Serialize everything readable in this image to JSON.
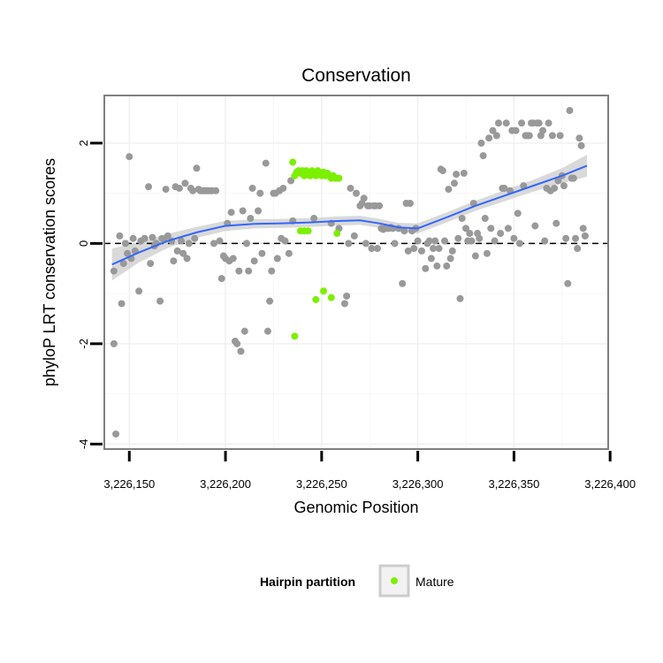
{
  "chart_data": {
    "type": "scatter",
    "title": "Conservation",
    "xlabel": "Genomic Position",
    "ylabel": "phyloP LRT conservation scores",
    "xlim": [
      3226137,
      3226399
    ],
    "ylim": [
      -4.1,
      2.95
    ],
    "x_ticks": [
      3226150,
      3226200,
      3226250,
      3226300,
      3226350,
      3226400
    ],
    "x_tick_labels": [
      "3,226,150",
      "3,226,200",
      "3,226,250",
      "3,226,300",
      "3,226,350",
      "3,226,400"
    ],
    "y_ticks": [
      -4,
      -2,
      0,
      2
    ],
    "y_tick_labels": [
      "-4",
      "-2",
      "0",
      "2"
    ],
    "reference_line": {
      "y": 0,
      "style": "dashed"
    },
    "legend": {
      "title": "Hairpin partition",
      "entries": [
        "Mature"
      ],
      "position": "bottom"
    },
    "colors": {
      "other": "#999999",
      "mature": "#7cf000",
      "smooth": "#3366ff",
      "band": "#cccccc"
    },
    "series": [
      {
        "name": "Other",
        "points": [
          [
            3226142,
            -0.55
          ],
          [
            3226142,
            -2.0
          ],
          [
            3226143,
            -3.8
          ],
          [
            3226145,
            0.15
          ],
          [
            3226146,
            -1.2
          ],
          [
            3226147,
            -0.4
          ],
          [
            3226148,
            0.0
          ],
          [
            3226149,
            -0.2
          ],
          [
            3226150,
            1.73
          ],
          [
            3226151,
            -0.3
          ],
          [
            3226152,
            0.1
          ],
          [
            3226153,
            -0.15
          ],
          [
            3226155,
            -0.95
          ],
          [
            3226156,
            0.05
          ],
          [
            3226158,
            0.1
          ],
          [
            3226160,
            1.13
          ],
          [
            3226161,
            -0.4
          ],
          [
            3226162,
            0.12
          ],
          [
            3226163,
            -0.05
          ],
          [
            3226164,
            0.0
          ],
          [
            3226166,
            -1.15
          ],
          [
            3226167,
            0.1
          ],
          [
            3226168,
            0.08
          ],
          [
            3226169,
            1.08
          ],
          [
            3226170,
            0.15
          ],
          [
            3226172,
            0.05
          ],
          [
            3226173,
            -0.35
          ],
          [
            3226174,
            1.13
          ],
          [
            3226175,
            -0.15
          ],
          [
            3226176,
            1.1
          ],
          [
            3226177,
            0.05
          ],
          [
            3226178,
            -0.2
          ],
          [
            3226179,
            1.2
          ],
          [
            3226180,
            -0.3
          ],
          [
            3226181,
            0.0
          ],
          [
            3226182,
            1.1
          ],
          [
            3226183,
            1.05
          ],
          [
            3226184,
            0.1
          ],
          [
            3226185,
            1.5
          ],
          [
            3226186,
            1.08
          ],
          [
            3226187,
            1.05
          ],
          [
            3226188,
            1.05
          ],
          [
            3226189,
            1.05
          ],
          [
            3226190,
            1.05
          ],
          [
            3226191,
            1.05
          ],
          [
            3226192,
            1.05
          ],
          [
            3226193,
            1.05
          ],
          [
            3226194,
            0.0
          ],
          [
            3226195,
            1.05
          ],
          [
            3226197,
            0.05
          ],
          [
            3226198,
            -0.7
          ],
          [
            3226199,
            -0.25
          ],
          [
            3226200,
            -0.3
          ],
          [
            3226201,
            0.4
          ],
          [
            3226202,
            -0.35
          ],
          [
            3226203,
            0.62
          ],
          [
            3226204,
            -0.3
          ],
          [
            3226205,
            -1.95
          ],
          [
            3226206,
            -2.0
          ],
          [
            3226207,
            -0.55
          ],
          [
            3226208,
            -2.15
          ],
          [
            3226209,
            0.65
          ],
          [
            3226210,
            -1.75
          ],
          [
            3226211,
            0.0
          ],
          [
            3226212,
            -0.55
          ],
          [
            3226213,
            0.5
          ],
          [
            3226214,
            1.1
          ],
          [
            3226215,
            -0.35
          ],
          [
            3226217,
            0.65
          ],
          [
            3226218,
            1.0
          ],
          [
            3226219,
            -0.2
          ],
          [
            3226221,
            1.6
          ],
          [
            3226222,
            -1.75
          ],
          [
            3226223,
            -1.15
          ],
          [
            3226224,
            -0.55
          ],
          [
            3226225,
            1.0
          ],
          [
            3226226,
            1.0
          ],
          [
            3226227,
            -0.3
          ],
          [
            3226228,
            1.05
          ],
          [
            3226229,
            0.1
          ],
          [
            3226230,
            1.1
          ],
          [
            3226231,
            0.05
          ],
          [
            3226233,
            -0.2
          ],
          [
            3226234,
            1.25
          ],
          [
            3226235,
            0.45
          ],
          [
            3226246,
            0.5
          ],
          [
            3226255,
            0.4
          ],
          [
            3226259,
            0.3
          ],
          [
            3226262,
            -1.2
          ],
          [
            3226263,
            -1.05
          ],
          [
            3226264,
            0.0
          ],
          [
            3226265,
            1.1
          ],
          [
            3226267,
            0.15
          ],
          [
            3226268,
            1.0
          ],
          [
            3226270,
            0.75
          ],
          [
            3226271,
            0.8
          ],
          [
            3226272,
            0.9
          ],
          [
            3226273,
            0.0
          ],
          [
            3226274,
            0.75
          ],
          [
            3226275,
            0.75
          ],
          [
            3226276,
            -0.1
          ],
          [
            3226277,
            0.75
          ],
          [
            3226278,
            0.75
          ],
          [
            3226279,
            -0.1
          ],
          [
            3226280,
            0.75
          ],
          [
            3226281,
            0.3
          ],
          [
            3226282,
            0.28
          ],
          [
            3226283,
            0.3
          ],
          [
            3226284,
            0.3
          ],
          [
            3226285,
            0.3
          ],
          [
            3226286,
            0.32
          ],
          [
            3226287,
            0.3
          ],
          [
            3226288,
            0.0
          ],
          [
            3226290,
            0.3
          ],
          [
            3226292,
            -0.8
          ],
          [
            3226293,
            0.25
          ],
          [
            3226294,
            0.8
          ],
          [
            3226295,
            -0.15
          ],
          [
            3226296,
            0.8
          ],
          [
            3226297,
            0.25
          ],
          [
            3226298,
            -0.1
          ],
          [
            3226299,
            0.3
          ],
          [
            3226300,
            0.05
          ],
          [
            3226302,
            -0.15
          ],
          [
            3226304,
            -0.5
          ],
          [
            3226305,
            0.0
          ],
          [
            3226306,
            0.05
          ],
          [
            3226307,
            -0.3
          ],
          [
            3226308,
            -0.1
          ],
          [
            3226309,
            0.05
          ],
          [
            3226310,
            -0.45
          ],
          [
            3226311,
            -0.1
          ],
          [
            3226312,
            1.48
          ],
          [
            3226313,
            1.45
          ],
          [
            3226314,
            0.05
          ],
          [
            3226315,
            -0.45
          ],
          [
            3226316,
            1.08
          ],
          [
            3226317,
            -0.3
          ],
          [
            3226318,
            -0.15
          ],
          [
            3226319,
            1.2
          ],
          [
            3226320,
            1.38
          ],
          [
            3226321,
            0.1
          ],
          [
            3226322,
            -1.1
          ],
          [
            3226323,
            0.5
          ],
          [
            3226324,
            1.4
          ],
          [
            3226325,
            0.3
          ],
          [
            3226326,
            0.05
          ],
          [
            3226327,
            0.2
          ],
          [
            3226328,
            0.05
          ],
          [
            3226329,
            0.8
          ],
          [
            3226330,
            -0.25
          ],
          [
            3226331,
            0.2
          ],
          [
            3226332,
            0.1
          ],
          [
            3226333,
            2.0
          ],
          [
            3226334,
            1.75
          ],
          [
            3226335,
            0.5
          ],
          [
            3226336,
            -0.2
          ],
          [
            3226337,
            2.1
          ],
          [
            3226338,
            0.3
          ],
          [
            3226339,
            2.25
          ],
          [
            3226340,
            0.05
          ],
          [
            3226341,
            2.15
          ],
          [
            3226342,
            2.4
          ],
          [
            3226343,
            0.2
          ],
          [
            3226344,
            1.1
          ],
          [
            3226345,
            1.1
          ],
          [
            3226346,
            2.4
          ],
          [
            3226347,
            0.3
          ],
          [
            3226348,
            1.05
          ],
          [
            3226349,
            2.25
          ],
          [
            3226350,
            0.1
          ],
          [
            3226351,
            2.25
          ],
          [
            3226352,
            0.6
          ],
          [
            3226353,
            0.0
          ],
          [
            3226354,
            2.4
          ],
          [
            3226355,
            1.15
          ],
          [
            3226356,
            2.15
          ],
          [
            3226357,
            2.15
          ],
          [
            3226358,
            2.15
          ],
          [
            3226359,
            2.4
          ],
          [
            3226360,
            2.4
          ],
          [
            3226361,
            0.35
          ],
          [
            3226362,
            2.4
          ],
          [
            3226363,
            2.4
          ],
          [
            3226364,
            2.15
          ],
          [
            3226365,
            2.25
          ],
          [
            3226366,
            0.05
          ],
          [
            3226367,
            1.1
          ],
          [
            3226368,
            2.4
          ],
          [
            3226369,
            1.05
          ],
          [
            3226370,
            2.15
          ],
          [
            3226371,
            1.1
          ],
          [
            3226372,
            0.4
          ],
          [
            3226373,
            1.25
          ],
          [
            3226374,
            2.15
          ],
          [
            3226375,
            1.35
          ],
          [
            3226376,
            1.15
          ],
          [
            3226377,
            0.1
          ],
          [
            3226378,
            -0.8
          ],
          [
            3226379,
            2.65
          ],
          [
            3226380,
            1.3
          ],
          [
            3226381,
            1.3
          ],
          [
            3226382,
            0.1
          ],
          [
            3226383,
            -0.1
          ],
          [
            3226384,
            2.1
          ],
          [
            3226385,
            1.95
          ],
          [
            3226386,
            0.3
          ],
          [
            3226387,
            0.15
          ]
        ]
      },
      {
        "name": "Mature",
        "points": [
          [
            3226235,
            1.62
          ],
          [
            3226236,
            1.35
          ],
          [
            3226236,
            -1.85
          ],
          [
            3226237,
            1.42
          ],
          [
            3226238,
            1.45
          ],
          [
            3226239,
            0.25
          ],
          [
            3226239,
            1.4
          ],
          [
            3226240,
            1.45
          ],
          [
            3226241,
            1.35
          ],
          [
            3226241,
            0.25
          ],
          [
            3226242,
            1.45
          ],
          [
            3226243,
            1.4
          ],
          [
            3226243,
            0.25
          ],
          [
            3226244,
            1.35
          ],
          [
            3226245,
            1.45
          ],
          [
            3226246,
            1.4
          ],
          [
            3226247,
            1.35
          ],
          [
            3226247,
            -1.12
          ],
          [
            3226248,
            1.45
          ],
          [
            3226249,
            1.4
          ],
          [
            3226250,
            1.35
          ],
          [
            3226251,
            1.42
          ],
          [
            3226251,
            -0.95
          ],
          [
            3226252,
            1.35
          ],
          [
            3226253,
            1.4
          ],
          [
            3226254,
            1.35
          ],
          [
            3226255,
            1.3
          ],
          [
            3226255,
            -1.08
          ],
          [
            3226256,
            1.35
          ],
          [
            3226257,
            1.3
          ],
          [
            3226258,
            0.2
          ],
          [
            3226258,
            1.3
          ],
          [
            3226259,
            1.3
          ]
        ]
      }
    ],
    "smooth": {
      "x": [
        3226141,
        3226155,
        3226170,
        3226185,
        3226200,
        3226215,
        3226230,
        3226245,
        3226260,
        3226270,
        3226280,
        3226290,
        3226300,
        3226315,
        3226330,
        3226345,
        3226360,
        3226375,
        3226388
      ],
      "y": [
        -0.42,
        -0.18,
        0.05,
        0.22,
        0.35,
        0.39,
        0.4,
        0.42,
        0.45,
        0.46,
        0.4,
        0.32,
        0.3,
        0.52,
        0.75,
        0.95,
        1.15,
        1.35,
        1.55
      ],
      "ci": [
        0.32,
        0.2,
        0.14,
        0.11,
        0.1,
        0.09,
        0.09,
        0.09,
        0.09,
        0.09,
        0.09,
        0.09,
        0.1,
        0.1,
        0.1,
        0.11,
        0.12,
        0.15,
        0.22
      ]
    }
  }
}
